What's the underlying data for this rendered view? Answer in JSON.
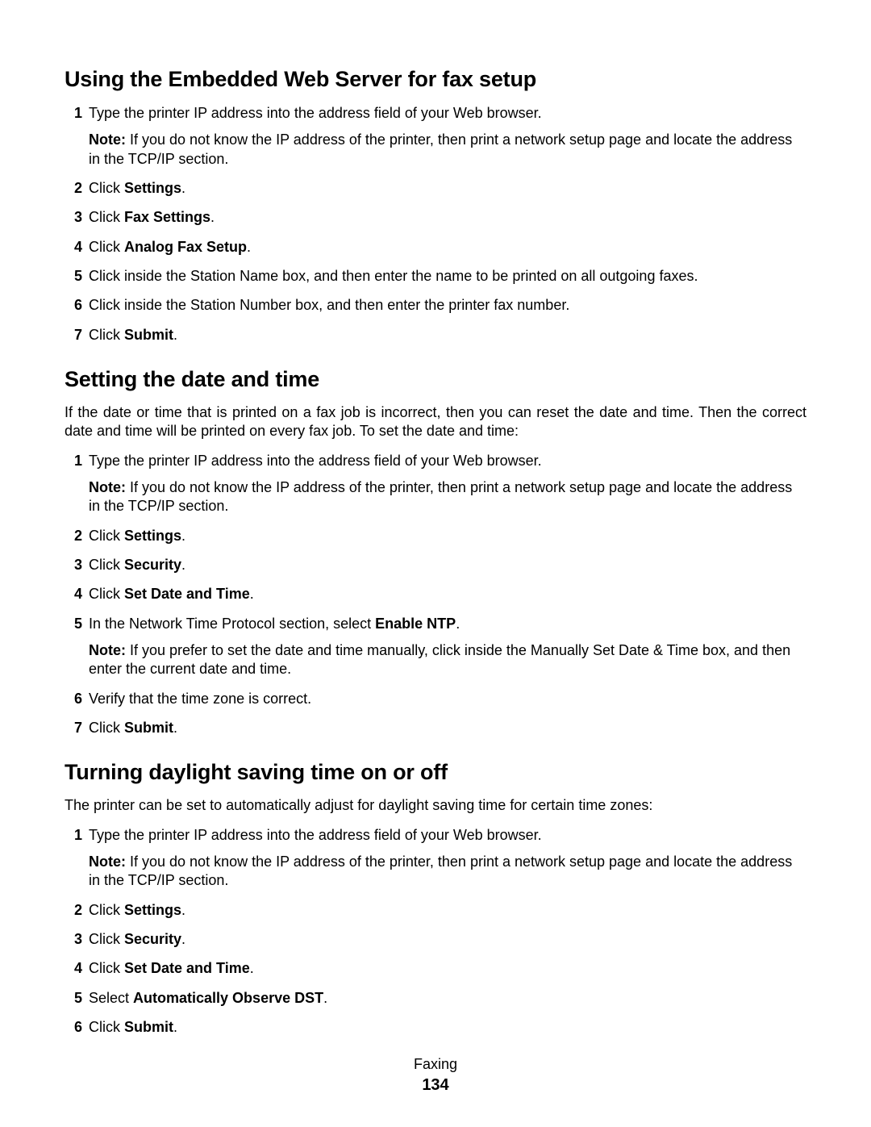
{
  "footer": {
    "category": "Faxing",
    "page_number": "134"
  },
  "note_label": "Note:",
  "sections": [
    {
      "heading": "Using the Embedded Web Server for fax setup",
      "intro": "",
      "steps": [
        {
          "pre": "Type the printer IP address into the address field of your Web browser.",
          "bold": "",
          "post": "",
          "note": " If you do not know the IP address of the printer, then print a network setup page and locate the address in the TCP/IP section."
        },
        {
          "pre": "Click ",
          "bold": "Settings",
          "post": ".",
          "note": ""
        },
        {
          "pre": "Click ",
          "bold": "Fax Settings",
          "post": ".",
          "note": ""
        },
        {
          "pre": "Click ",
          "bold": "Analog Fax Setup",
          "post": ".",
          "note": ""
        },
        {
          "pre": "Click inside the Station Name box, and then enter the name to be printed on all outgoing faxes.",
          "bold": "",
          "post": "",
          "note": ""
        },
        {
          "pre": "Click inside the Station Number box, and then enter the printer fax number.",
          "bold": "",
          "post": "",
          "note": ""
        },
        {
          "pre": "Click ",
          "bold": "Submit",
          "post": ".",
          "note": ""
        }
      ]
    },
    {
      "heading": "Setting the date and time",
      "intro": "If the date or time that is printed on a fax job is incorrect, then you can reset the date and time. Then the correct date and time will be printed on every fax job. To set the date and time:",
      "steps": [
        {
          "pre": "Type the printer IP address into the address field of your Web browser.",
          "bold": "",
          "post": "",
          "note": " If you do not know the IP address of the printer, then print a network setup page and locate the address in the TCP/IP section."
        },
        {
          "pre": "Click ",
          "bold": "Settings",
          "post": ".",
          "note": ""
        },
        {
          "pre": "Click ",
          "bold": "Security",
          "post": ".",
          "note": ""
        },
        {
          "pre": "Click ",
          "bold": "Set Date and Time",
          "post": ".",
          "note": ""
        },
        {
          "pre": "In the Network Time Protocol section, select ",
          "bold": "Enable NTP",
          "post": ".",
          "note": " If you prefer to set the date and time manually, click inside the Manually Set Date & Time box, and then enter the current date and time."
        },
        {
          "pre": "Verify that the time zone is correct.",
          "bold": "",
          "post": "",
          "note": ""
        },
        {
          "pre": "Click ",
          "bold": "Submit",
          "post": ".",
          "note": ""
        }
      ]
    },
    {
      "heading": "Turning daylight saving time on or off",
      "intro": "The printer can be set to automatically adjust for daylight saving time for certain time zones:",
      "steps": [
        {
          "pre": "Type the printer IP address into the address field of your Web browser.",
          "bold": "",
          "post": "",
          "note": " If you do not know the IP address of the printer, then print a network setup page and locate the address in the TCP/IP section."
        },
        {
          "pre": "Click ",
          "bold": "Settings",
          "post": ".",
          "note": ""
        },
        {
          "pre": "Click ",
          "bold": "Security",
          "post": ".",
          "note": ""
        },
        {
          "pre": "Click ",
          "bold": "Set Date and Time",
          "post": ".",
          "note": ""
        },
        {
          "pre": "Select ",
          "bold": "Automatically Observe DST",
          "post": ".",
          "note": ""
        },
        {
          "pre": "Click ",
          "bold": "Submit",
          "post": ".",
          "note": ""
        }
      ]
    }
  ]
}
